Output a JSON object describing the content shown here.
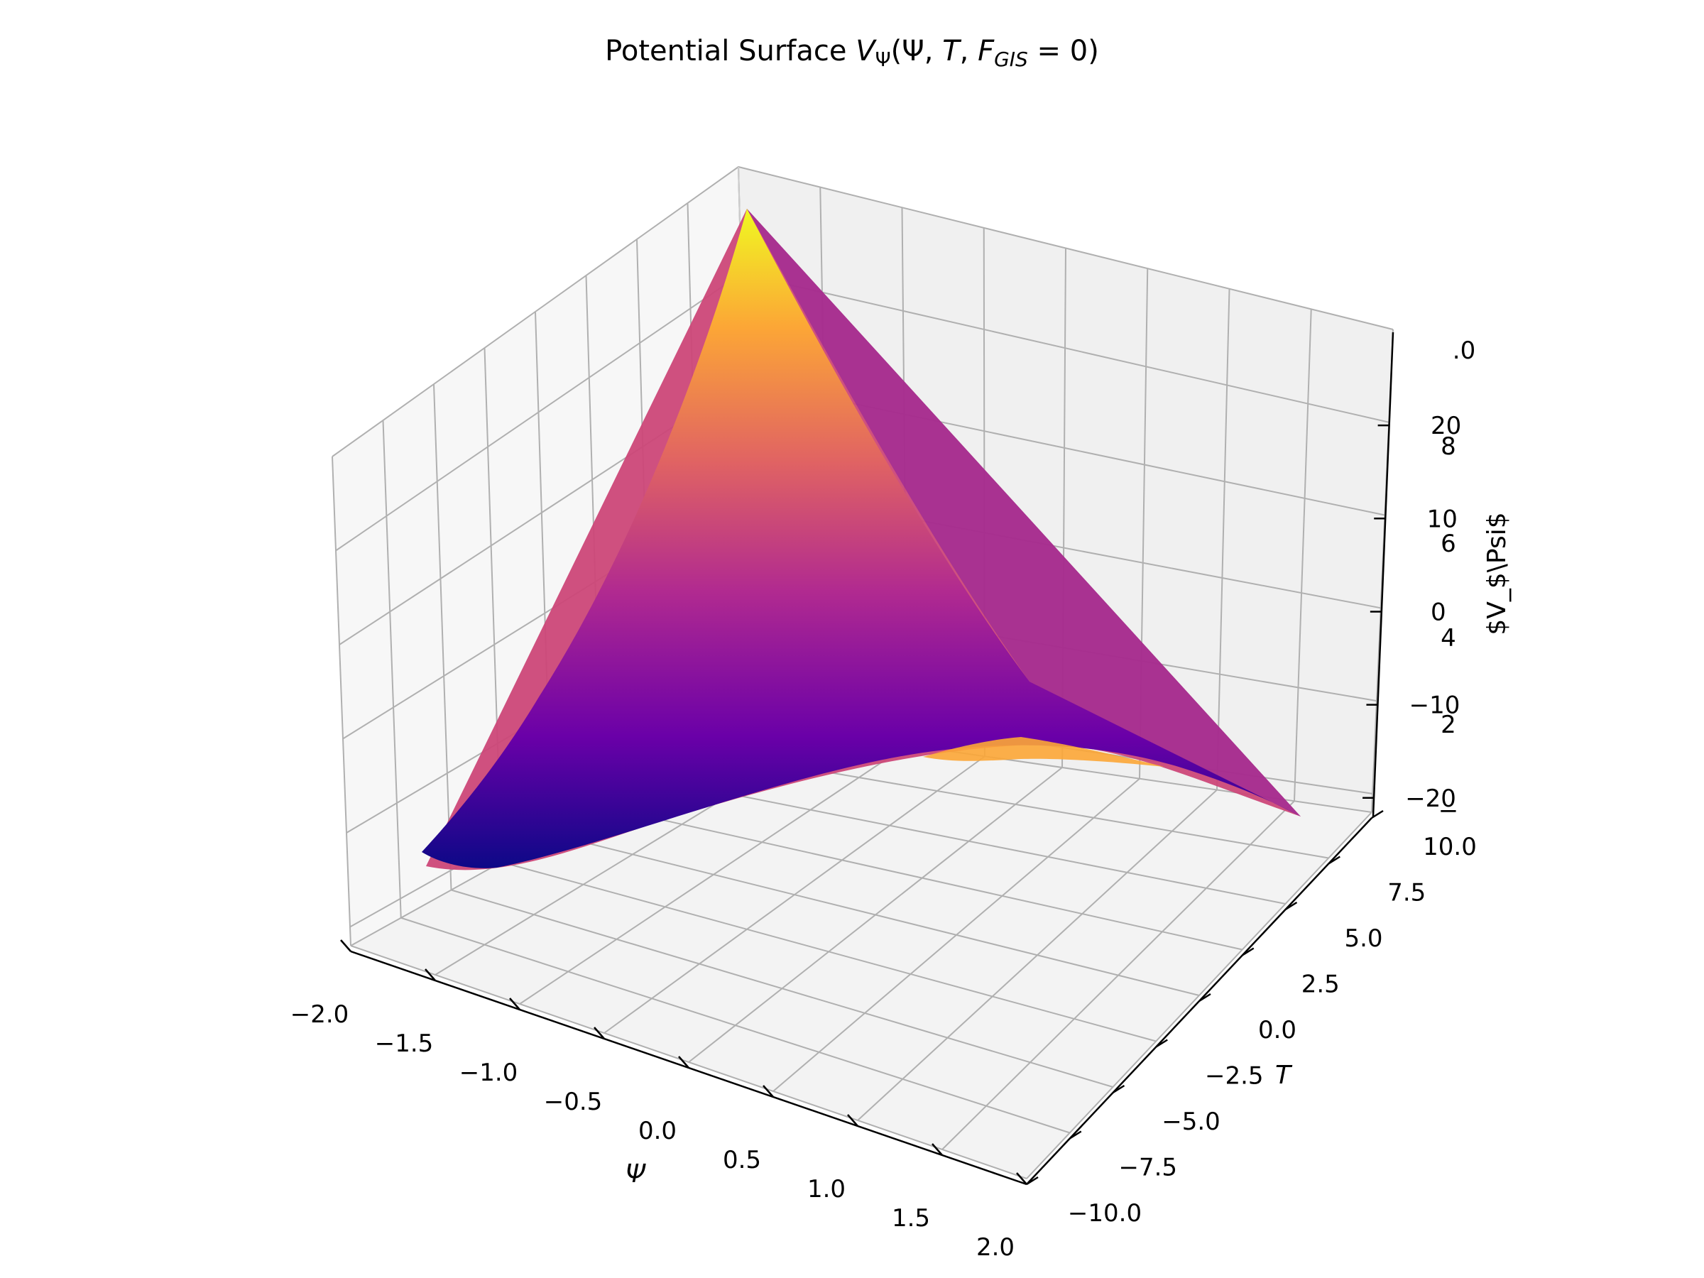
{
  "chart_data": {
    "type": "surface3d",
    "title": "Potential Surface",
    "title_math": {
      "symbol": "V",
      "subscript": "Ψ",
      "args": "(Ψ, ",
      "arg_t": "T",
      "arg_sep": ", ",
      "arg_f": "F",
      "arg_f_sub": "GIS",
      "arg_end": " = 0)"
    },
    "colormap": "plasma",
    "colormap_stops": [
      "#0d0887",
      "#6a00a8",
      "#b12a90",
      "#e16462",
      "#fca636",
      "#f0f921"
    ],
    "pane_color": "#f2f2f2",
    "x_axis": {
      "label": "Ψ",
      "range": [
        -2.0,
        2.0
      ],
      "ticks": [
        -2.0,
        -1.5,
        -1.0,
        -0.5,
        0.0,
        0.5,
        1.0,
        1.5,
        2.0
      ],
      "tick_labels": [
        "−2.0",
        "−1.5",
        "−1.0",
        "−0.5",
        "0.0",
        "0.5",
        "1.0",
        "1.5",
        "2.0"
      ]
    },
    "y_axis": {
      "label": "T",
      "range": [
        -10.0,
        10.0
      ],
      "ticks": [
        -10.0,
        -7.5,
        -5.0,
        -2.5,
        0.0,
        2.5,
        5.0,
        7.5,
        10.0
      ],
      "tick_labels": [
        "−10.0",
        "−7.5",
        "−5.0",
        "−2.5",
        "0.0",
        "2.5",
        "5.0",
        "7.5",
        "10.0"
      ]
    },
    "z_axis": {
      "label": "$V_$\\Psi$",
      "range": [
        -22,
        30
      ],
      "ticks": [
        -20,
        -10,
        0,
        10,
        20
      ],
      "tick_labels": [
        "−20",
        "−10",
        "0",
        "10",
        "20"
      ]
    },
    "overlap_labels": [
      ".0",
      "8",
      "6",
      "4",
      "2",
      "−"
    ],
    "surface_corners": [
      {
        "psi": -2.0,
        "t": 10.0,
        "v": 22
      },
      {
        "psi": -2.0,
        "t": -10.0,
        "v": -18
      },
      {
        "psi": 2.0,
        "t": -10.0,
        "v": -22
      },
      {
        "psi": 2.0,
        "t": 10.0,
        "v": -18
      }
    ]
  }
}
